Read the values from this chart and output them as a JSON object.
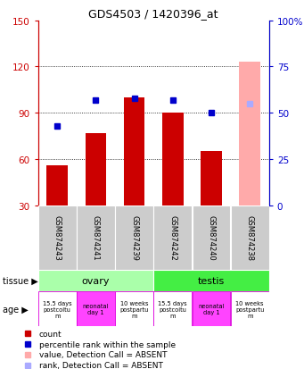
{
  "title": "GDS4503 / 1420396_at",
  "samples": [
    "GSM874243",
    "GSM874241",
    "GSM874239",
    "GSM874242",
    "GSM874240",
    "GSM874238"
  ],
  "bar_values": [
    56,
    77,
    100,
    90,
    65,
    0
  ],
  "bar_color": "#cc0000",
  "absent_bar_values": [
    0,
    0,
    0,
    0,
    0,
    123
  ],
  "absent_bar_color": "#ffaaaa",
  "rank_dots": [
    43,
    57,
    58,
    57,
    50,
    0
  ],
  "rank_dots_absent": [
    0,
    0,
    0,
    0,
    0,
    55
  ],
  "rank_dot_color": "#0000cc",
  "rank_dot_absent_color": "#aaaaff",
  "ylim_left": [
    30,
    150
  ],
  "ylim_right": [
    0,
    100
  ],
  "yticks_left": [
    30,
    60,
    90,
    120,
    150
  ],
  "yticks_right": [
    0,
    25,
    50,
    75,
    100
  ],
  "ytick_labels_left": [
    "30",
    "60",
    "90",
    "120",
    "150"
  ],
  "ytick_labels_right": [
    "0",
    "25",
    "50",
    "75",
    "100%"
  ],
  "tissue_info": [
    {
      "label": "ovary",
      "span": [
        0,
        3
      ],
      "color": "#aaffaa"
    },
    {
      "label": "testis",
      "span": [
        3,
        6
      ],
      "color": "#44ee44"
    }
  ],
  "age_labels": [
    "15.5 days\npostcoitu\nm",
    "neonatal\nday 1",
    "10 weeks\npostpartu\nm",
    "15.5 days\npostcoitu\nm",
    "neonatal\nday 1",
    "10 weeks\npostpartu\nm"
  ],
  "age_colors": [
    "#ffffff",
    "#ff44ff",
    "#ffffff",
    "#ffffff",
    "#ff44ff",
    "#ffffff"
  ],
  "age_border_color": "#dd00dd",
  "left_axis_color": "#cc0000",
  "right_axis_color": "#0000cc",
  "legend_items": [
    {
      "color": "#cc0000",
      "label": "count"
    },
    {
      "color": "#0000cc",
      "label": "percentile rank within the sample"
    },
    {
      "color": "#ffaaaa",
      "label": "value, Detection Call = ABSENT"
    },
    {
      "color": "#aaaaff",
      "label": "rank, Detection Call = ABSENT"
    }
  ]
}
